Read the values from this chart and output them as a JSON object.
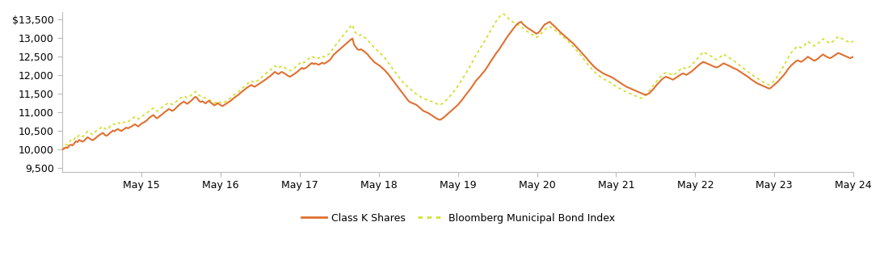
{
  "x_tick_labels": [
    "May 15",
    "May 16",
    "May 17",
    "May 18",
    "May 19",
    "May 20",
    "May 21",
    "May 22",
    "May 23",
    "May 24"
  ],
  "y_ticks": [
    9500,
    10000,
    10500,
    11000,
    11500,
    12000,
    12500,
    13000,
    13500
  ],
  "ylim": [
    9400,
    13700
  ],
  "line1_color": "#E07030",
  "line2_color": "#D4E030",
  "line1_label": "Class K Shares",
  "line2_label": "Bloomberg Municipal Bond Index",
  "background_color": "#ffffff",
  "line1_values": [
    10000,
    10020,
    10060,
    10040,
    10100,
    10130,
    10110,
    10160,
    10220,
    10200,
    10260,
    10230,
    10210,
    10240,
    10290,
    10330,
    10300,
    10270,
    10250,
    10280,
    10320,
    10360,
    10390,
    10420,
    10450,
    10400,
    10370,
    10390,
    10440,
    10470,
    10510,
    10490,
    10530,
    10550,
    10520,
    10500,
    10530,
    10560,
    10590,
    10570,
    10600,
    10620,
    10650,
    10680,
    10650,
    10620,
    10660,
    10700,
    10720,
    10750,
    10780,
    10830,
    10870,
    10900,
    10930,
    10880,
    10840,
    10870,
    10910,
    10940,
    10980,
    11020,
    11050,
    11090,
    11070,
    11040,
    11060,
    11100,
    11150,
    11190,
    11230,
    11260,
    11290,
    11260,
    11230,
    11260,
    11300,
    11340,
    11390,
    11420,
    11380,
    11310,
    11280,
    11300,
    11270,
    11240,
    11290,
    11310,
    11260,
    11230,
    11190,
    11210,
    11250,
    11220,
    11190,
    11170,
    11200,
    11230,
    11260,
    11290,
    11320,
    11360,
    11400,
    11430,
    11460,
    11500,
    11540,
    11580,
    11610,
    11650,
    11680,
    11710,
    11740,
    11710,
    11690,
    11720,
    11750,
    11780,
    11810,
    11840,
    11870,
    11900,
    11940,
    11970,
    12010,
    12050,
    12090,
    12060,
    12030,
    12060,
    12090,
    12070,
    12040,
    12010,
    11980,
    11960,
    11990,
    12020,
    12050,
    12080,
    12120,
    12160,
    12200,
    12170,
    12190,
    12220,
    12260,
    12300,
    12330,
    12300,
    12320,
    12300,
    12280,
    12310,
    12340,
    12310,
    12330,
    12360,
    12390,
    12430,
    12500,
    12560,
    12600,
    12640,
    12680,
    12720,
    12760,
    12800,
    12840,
    12880,
    12920,
    12960,
    12990,
    12820,
    12760,
    12700,
    12680,
    12700,
    12670,
    12640,
    12600,
    12560,
    12500,
    12450,
    12400,
    12350,
    12320,
    12290,
    12260,
    12220,
    12180,
    12140,
    12090,
    12040,
    11980,
    11920,
    11860,
    11800,
    11740,
    11680,
    11620,
    11560,
    11500,
    11440,
    11380,
    11320,
    11280,
    11260,
    11240,
    11220,
    11200,
    11160,
    11120,
    11080,
    11040,
    11020,
    11000,
    10980,
    10950,
    10920,
    10890,
    10860,
    10830,
    10810,
    10800,
    10830,
    10860,
    10900,
    10940,
    10980,
    11020,
    11060,
    11100,
    11140,
    11180,
    11230,
    11280,
    11340,
    11400,
    11460,
    11520,
    11580,
    11640,
    11700,
    11770,
    11840,
    11890,
    11940,
    11990,
    12050,
    12100,
    12160,
    12230,
    12300,
    12380,
    12440,
    12510,
    12580,
    12640,
    12700,
    12770,
    12840,
    12910,
    12980,
    13050,
    13110,
    13170,
    13230,
    13290,
    13350,
    13390,
    13420,
    13440,
    13380,
    13340,
    13300,
    13270,
    13240,
    13210,
    13180,
    13150,
    13120,
    13140,
    13180,
    13250,
    13310,
    13370,
    13390,
    13420,
    13440,
    13390,
    13350,
    13310,
    13260,
    13220,
    13170,
    13130,
    13090,
    13050,
    13010,
    12970,
    12930,
    12890,
    12850,
    12800,
    12750,
    12700,
    12650,
    12600,
    12550,
    12500,
    12450,
    12390,
    12340,
    12290,
    12240,
    12200,
    12160,
    12130,
    12100,
    12070,
    12040,
    12020,
    12000,
    11980,
    11960,
    11940,
    11910,
    11880,
    11850,
    11820,
    11790,
    11760,
    11730,
    11700,
    11680,
    11660,
    11640,
    11620,
    11600,
    11580,
    11560,
    11540,
    11520,
    11500,
    11480,
    11470,
    11490,
    11520,
    11560,
    11610,
    11660,
    11720,
    11770,
    11820,
    11870,
    11910,
    11940,
    11960,
    11940,
    11920,
    11900,
    11880,
    11910,
    11940,
    11970,
    12000,
    12030,
    12050,
    12030,
    12010,
    12040,
    12070,
    12100,
    12140,
    12180,
    12220,
    12260,
    12300,
    12330,
    12360,
    12340,
    12320,
    12300,
    12280,
    12260,
    12240,
    12220,
    12210,
    12230,
    12260,
    12290,
    12320,
    12300,
    12280,
    12260,
    12240,
    12210,
    12190,
    12170,
    12150,
    12120,
    12090,
    12060,
    12030,
    12000,
    11970,
    11940,
    11900,
    11870,
    11840,
    11810,
    11780,
    11760,
    11740,
    11720,
    11700,
    11680,
    11660,
    11640,
    11660,
    11700,
    11740,
    11780,
    11820,
    11870,
    11920,
    11970,
    12020,
    12080,
    12150,
    12210,
    12260,
    12300,
    12340,
    12380,
    12400,
    12380,
    12360,
    12390,
    12420,
    12460,
    12500,
    12470,
    12440,
    12410,
    12390,
    12420,
    12450,
    12490,
    12530,
    12560,
    12530,
    12500,
    12480,
    12460,
    12480,
    12510,
    12540,
    12570,
    12600,
    12580,
    12560,
    12540,
    12520,
    12500,
    12480,
    12460,
    12480,
    12500
  ],
  "line2_values": [
    10000,
    10060,
    10140,
    10120,
    10180,
    10250,
    10230,
    10270,
    10350,
    10330,
    10400,
    10370,
    10350,
    10380,
    10440,
    10490,
    10460,
    10430,
    10400,
    10440,
    10500,
    10530,
    10560,
    10590,
    10620,
    10570,
    10540,
    10560,
    10610,
    10650,
    10690,
    10670,
    10710,
    10730,
    10700,
    10680,
    10720,
    10740,
    10770,
    10750,
    10790,
    10820,
    10850,
    10880,
    10850,
    10820,
    10860,
    10890,
    10920,
    10950,
    10980,
    11020,
    11050,
    11090,
    11110,
    11070,
    11030,
    11060,
    11100,
    11130,
    11170,
    11200,
    11230,
    11260,
    11240,
    11210,
    11240,
    11270,
    11310,
    11340,
    11380,
    11410,
    11440,
    11420,
    11390,
    11420,
    11450,
    11490,
    11530,
    11560,
    11520,
    11460,
    11440,
    11420,
    11400,
    11380,
    11360,
    11340,
    11310,
    11280,
    11250,
    11270,
    11300,
    11280,
    11260,
    11240,
    11270,
    11300,
    11330,
    11360,
    11400,
    11440,
    11480,
    11510,
    11540,
    11580,
    11620,
    11660,
    11700,
    11740,
    11780,
    11820,
    11850,
    11820,
    11800,
    11830,
    11860,
    11900,
    11940,
    11980,
    12020,
    12060,
    12100,
    12130,
    12170,
    12210,
    12250,
    12220,
    12190,
    12220,
    12250,
    12230,
    12200,
    12170,
    12140,
    12120,
    12150,
    12180,
    12210,
    12250,
    12290,
    12330,
    12370,
    12340,
    12360,
    12400,
    12440,
    12480,
    12510,
    12480,
    12500,
    12480,
    12460,
    12490,
    12520,
    12490,
    12510,
    12540,
    12570,
    12610,
    12680,
    12750,
    12810,
    12870,
    12930,
    12990,
    13040,
    13100,
    13150,
    13210,
    13270,
    13320,
    13360,
    13200,
    13140,
    13090,
    13070,
    13090,
    13060,
    13030,
    12990,
    12950,
    12890,
    12840,
    12790,
    12730,
    12690,
    12660,
    12620,
    12570,
    12520,
    12470,
    12410,
    12350,
    12290,
    12230,
    12160,
    12100,
    12040,
    11980,
    11920,
    11860,
    11810,
    11760,
    11720,
    11680,
    11640,
    11600,
    11560,
    11520,
    11490,
    11460,
    11430,
    11400,
    11380,
    11360,
    11340,
    11320,
    11310,
    11290,
    11270,
    11250,
    11230,
    11210,
    11200,
    11230,
    11260,
    11300,
    11350,
    11400,
    11450,
    11500,
    11560,
    11620,
    11680,
    11750,
    11820,
    11890,
    11960,
    12030,
    12110,
    12190,
    12270,
    12350,
    12440,
    12530,
    12600,
    12670,
    12740,
    12820,
    12890,
    12970,
    13050,
    13130,
    13220,
    13290,
    13360,
    13440,
    13510,
    13570,
    13620,
    13650,
    13640,
    13590,
    13550,
    13510,
    13470,
    13440,
    13410,
    13380,
    13360,
    13340,
    13320,
    13270,
    13230,
    13200,
    13170,
    13140,
    13110,
    13080,
    13050,
    13020,
    13040,
    13080,
    13130,
    13180,
    13230,
    13260,
    13290,
    13310,
    13280,
    13250,
    13220,
    13180,
    13150,
    13110,
    13070,
    13030,
    12990,
    12950,
    12910,
    12860,
    12810,
    12760,
    12710,
    12660,
    12610,
    12560,
    12500,
    12440,
    12380,
    12320,
    12260,
    12210,
    12160,
    12110,
    12070,
    12030,
    11990,
    11960,
    11930,
    11900,
    11870,
    11840,
    11820,
    11800,
    11770,
    11740,
    11710,
    11680,
    11650,
    11630,
    11600,
    11580,
    11560,
    11540,
    11520,
    11500,
    11480,
    11460,
    11440,
    11420,
    11400,
    11380,
    11410,
    11440,
    11480,
    11530,
    11580,
    11640,
    11700,
    11760,
    11820,
    11880,
    11930,
    11980,
    12020,
    12050,
    12080,
    12060,
    12040,
    12020,
    12000,
    12030,
    12060,
    12100,
    12140,
    12180,
    12210,
    12190,
    12170,
    12200,
    12230,
    12270,
    12320,
    12370,
    12420,
    12480,
    12530,
    12580,
    12630,
    12600,
    12580,
    12550,
    12530,
    12500,
    12470,
    12440,
    12420,
    12450,
    12490,
    12530,
    12570,
    12540,
    12510,
    12480,
    12450,
    12420,
    12390,
    12360,
    12330,
    12290,
    12250,
    12210,
    12180,
    12150,
    12110,
    12080,
    12040,
    12010,
    11980,
    11950,
    11920,
    11890,
    11860,
    11830,
    11800,
    11780,
    11760,
    11740,
    11760,
    11800,
    11850,
    11910,
    11970,
    12040,
    12120,
    12200,
    12280,
    12360,
    12450,
    12530,
    12600,
    12650,
    12700,
    12750,
    12780,
    12760,
    12740,
    12770,
    12810,
    12860,
    12910,
    12870,
    12840,
    12810,
    12790,
    12820,
    12860,
    12900,
    12940,
    12980,
    12950,
    12920,
    12890,
    12860,
    12880,
    12920,
    12960,
    13000,
    13040,
    13010,
    12990,
    12970,
    12940,
    12920,
    12900,
    12880,
    12900,
    12920
  ]
}
